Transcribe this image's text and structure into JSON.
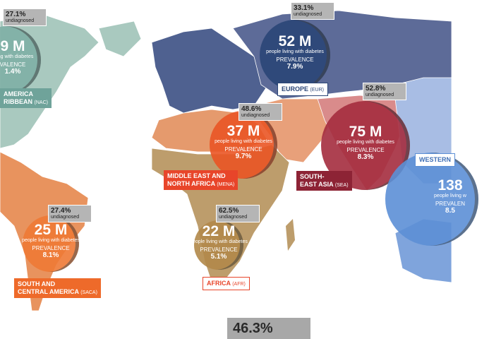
{
  "regions": [
    {
      "undiagnosed": "27.1%",
      "undiagnosed_label": "undiagnosed",
      "count": "9 M",
      "count_label": "living with diabetes",
      "prevalence_label": "VALENCE",
      "prevalence": "1.4%",
      "name_lines": [
        "AMERICA",
        "RIBBEAN"
      ],
      "code": "(NAC)"
    },
    {
      "undiagnosed": "33.1%",
      "undiagnosed_label": "undiagnosed",
      "count": "52 M",
      "count_label": "people living with diabetes",
      "prevalence_label": "PREVALENCE",
      "prevalence": "7.9%",
      "name_lines": [
        "EUROPE"
      ],
      "code": "(EUR)"
    },
    {
      "undiagnosed": "48.6%",
      "undiagnosed_label": "undiagnosed",
      "count": "37 M",
      "count_label": "people living with diabetes",
      "prevalence_label": "PREVALENCE",
      "prevalence": "9.7%",
      "name_lines": [
        "MIDDLE EAST AND",
        "NORTH AFRICA"
      ],
      "code": "(MENA)"
    },
    {
      "undiagnosed": "52.8%",
      "undiagnosed_label": "undiagnosed",
      "count": "75 M",
      "count_label": "people living with diabetes",
      "prevalence_label": "PREVALENCE",
      "prevalence": "8.3%",
      "name_lines": [
        "SOUTH-",
        "EAST ASIA"
      ],
      "code": "(SEA)"
    },
    {
      "count": "138",
      "count_label": "people living w",
      "prevalence_label": "PREVALEN",
      "prevalence": "8.5",
      "name_lines": [
        "WESTERN"
      ]
    },
    {
      "undiagnosed": "27.4%",
      "undiagnosed_label": "undiagnosed",
      "count": "25 M",
      "count_label": "people living with diabetes",
      "prevalence_label": "PREVALENCE",
      "prevalence": "8.1%",
      "name_lines": [
        "SOUTH AND",
        "CENTRAL AMERICA"
      ],
      "code": "(SACA)"
    },
    {
      "undiagnosed": "62.5%",
      "undiagnosed_label": "undiagnosed",
      "count": "22 M",
      "count_label": "people living with diabetes",
      "prevalence_label": "PREVALENCE",
      "prevalence": "5.1%",
      "name_lines": [
        "AFRICA"
      ],
      "code": "(AFR)"
    }
  ],
  "total_undiagnosed": "46.3%"
}
